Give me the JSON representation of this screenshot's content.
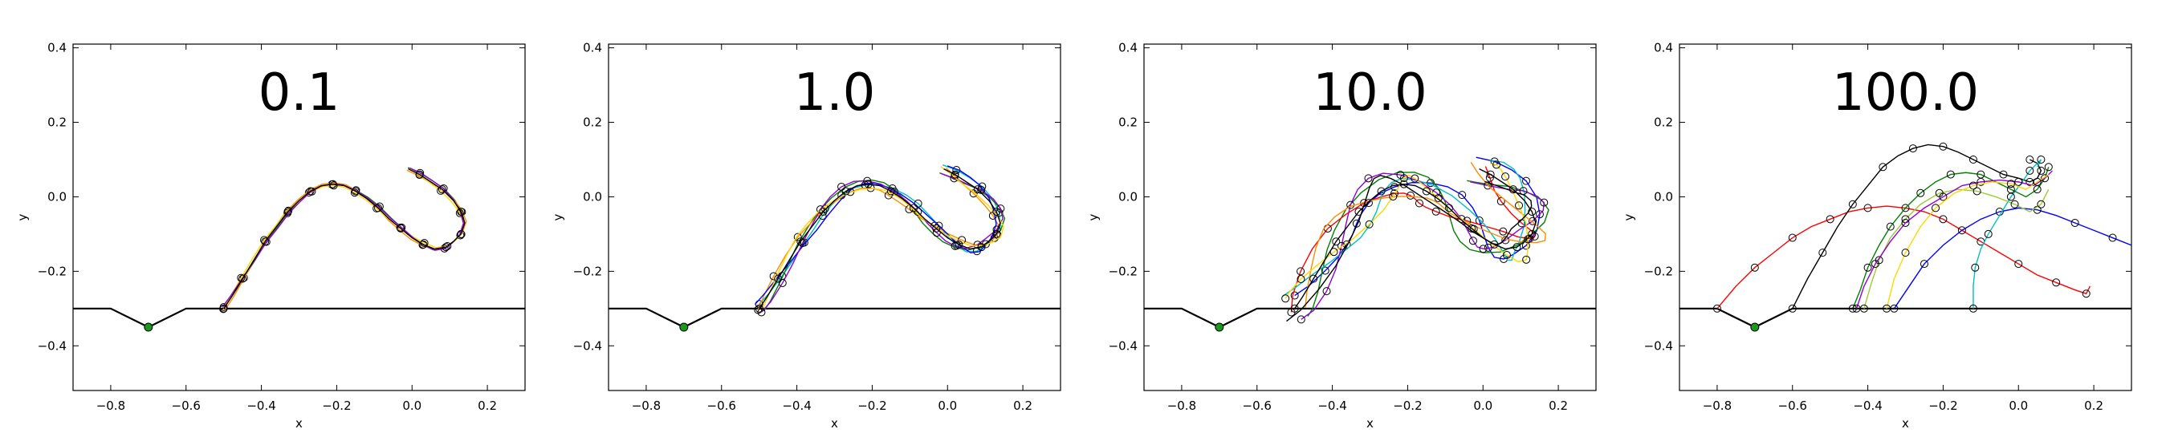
{
  "figure": {
    "type": "multi-panel-trajectory-plots"
  },
  "chart_data": [
    {
      "type": "line",
      "title": "0.1",
      "xlabel": "x",
      "ylabel": "y",
      "xlim": [
        -0.9,
        0.3
      ],
      "ylim": [
        -0.52,
        0.41
      ],
      "xticks": [
        "−0.8",
        "−0.6",
        "−0.4",
        "−0.2",
        "0.0",
        "0.2"
      ],
      "yticks": [
        "−0.4",
        "−0.2",
        "0.0",
        "0.2",
        "0.4"
      ],
      "grid": false,
      "ground": {
        "x": [
          -0.9,
          -0.8,
          -0.7,
          -0.6,
          0.3
        ],
        "y": [
          -0.3,
          -0.3,
          -0.35,
          -0.3,
          -0.3
        ]
      },
      "goal": {
        "x": -0.7,
        "y": -0.35,
        "color": "#1a9a1a"
      },
      "spread": 0.004,
      "series": [
        {
          "color": "#000000",
          "x": [
            -0.5,
            -0.48,
            -0.45,
            -0.42,
            -0.39,
            -0.36,
            -0.33,
            -0.3,
            -0.27,
            -0.24,
            -0.21,
            -0.18,
            -0.15,
            -0.12,
            -0.09,
            -0.06,
            -0.03,
            0.0,
            0.03,
            0.06,
            0.09,
            0.11,
            0.13,
            0.14,
            0.13,
            0.11,
            0.08,
            0.05,
            0.02,
            -0.01
          ],
          "y": [
            -0.3,
            -0.27,
            -0.22,
            -0.17,
            -0.12,
            -0.08,
            -0.04,
            -0.01,
            0.015,
            0.03,
            0.034,
            0.03,
            0.015,
            -0.005,
            -0.03,
            -0.06,
            -0.085,
            -0.11,
            -0.128,
            -0.14,
            -0.135,
            -0.12,
            -0.1,
            -0.07,
            -0.04,
            -0.01,
            0.02,
            0.04,
            0.06,
            0.075
          ]
        }
      ],
      "colors": [
        "#008000",
        "#ff8c00",
        "#ffd700",
        "#9400d3"
      ]
    },
    {
      "type": "line",
      "title": "1.0",
      "xlabel": "x",
      "ylabel": "y",
      "xlim": [
        -0.9,
        0.3
      ],
      "ylim": [
        -0.52,
        0.41
      ],
      "xticks": [
        "−0.8",
        "−0.6",
        "−0.4",
        "−0.2",
        "0.0",
        "0.2"
      ],
      "yticks": [
        "−0.4",
        "−0.2",
        "0.0",
        "0.2",
        "0.4"
      ],
      "grid": false,
      "ground": {
        "x": [
          -0.9,
          -0.8,
          -0.7,
          -0.6,
          0.3
        ],
        "y": [
          -0.3,
          -0.3,
          -0.35,
          -0.3,
          -0.3
        ]
      },
      "goal": {
        "x": -0.7,
        "y": -0.35,
        "color": "#1a9a1a"
      },
      "spread": 0.012,
      "series": [
        {
          "color": "#000000",
          "x": [
            -0.5,
            -0.48,
            -0.45,
            -0.42,
            -0.39,
            -0.36,
            -0.33,
            -0.3,
            -0.27,
            -0.24,
            -0.21,
            -0.18,
            -0.15,
            -0.12,
            -0.09,
            -0.06,
            -0.03,
            0.0,
            0.03,
            0.06,
            0.09,
            0.11,
            0.13,
            0.14,
            0.13,
            0.11,
            0.08,
            0.05,
            0.02,
            -0.01
          ],
          "y": [
            -0.3,
            -0.27,
            -0.22,
            -0.17,
            -0.12,
            -0.08,
            -0.04,
            -0.01,
            0.015,
            0.03,
            0.034,
            0.03,
            0.015,
            -0.005,
            -0.03,
            -0.06,
            -0.085,
            -0.11,
            -0.128,
            -0.14,
            -0.135,
            -0.12,
            -0.1,
            -0.07,
            -0.04,
            -0.01,
            0.02,
            0.04,
            0.06,
            0.075
          ]
        }
      ],
      "colors": [
        "#00bfbf",
        "#008000",
        "#ff8c00",
        "#0000ff",
        "#9400d3",
        "#ffd700"
      ]
    },
    {
      "type": "line",
      "title": "10.0",
      "xlabel": "x",
      "ylabel": "y",
      "xlim": [
        -0.9,
        0.3
      ],
      "ylim": [
        -0.52,
        0.41
      ],
      "xticks": [
        "−0.8",
        "−0.6",
        "−0.4",
        "−0.2",
        "0.0",
        "0.2"
      ],
      "yticks": [
        "−0.4",
        "−0.2",
        "0.0",
        "0.2",
        "0.4"
      ],
      "grid": false,
      "ground": {
        "x": [
          -0.9,
          -0.8,
          -0.7,
          -0.6,
          0.3
        ],
        "y": [
          -0.3,
          -0.3,
          -0.35,
          -0.3,
          -0.3
        ]
      },
      "goal": {
        "x": -0.7,
        "y": -0.35,
        "color": "#1a9a1a"
      },
      "spread": 0.035,
      "series": [
        {
          "color": "#000000",
          "x": [
            -0.5,
            -0.48,
            -0.45,
            -0.42,
            -0.39,
            -0.36,
            -0.33,
            -0.3,
            -0.27,
            -0.24,
            -0.21,
            -0.18,
            -0.15,
            -0.12,
            -0.09,
            -0.06,
            -0.03,
            0.0,
            0.03,
            0.06,
            0.09,
            0.11,
            0.13,
            0.14,
            0.13,
            0.11,
            0.08,
            0.05,
            0.02,
            -0.01
          ],
          "y": [
            -0.3,
            -0.27,
            -0.22,
            -0.17,
            -0.12,
            -0.08,
            -0.04,
            -0.01,
            0.015,
            0.03,
            0.034,
            0.03,
            0.015,
            -0.005,
            -0.03,
            -0.06,
            -0.085,
            -0.11,
            -0.128,
            -0.14,
            -0.135,
            -0.12,
            -0.1,
            -0.07,
            -0.04,
            -0.01,
            0.02,
            0.04,
            0.06,
            0.075
          ]
        }
      ],
      "colors": [
        "#0000ff",
        "#008000",
        "#ff0000",
        "#00bfbf",
        "#9400d3",
        "#ff8c00",
        "#ffd700",
        "#000000"
      ]
    },
    {
      "type": "line",
      "title": "100.0",
      "xlabel": "x",
      "ylabel": "y",
      "xlim": [
        -0.9,
        0.3
      ],
      "ylim": [
        -0.52,
        0.41
      ],
      "xticks": [
        "−0.8",
        "−0.6",
        "−0.4",
        "−0.2",
        "0.0",
        "0.2"
      ],
      "yticks": [
        "−0.4",
        "−0.2",
        "0.0",
        "0.2",
        "0.4"
      ],
      "grid": false,
      "ground": {
        "x": [
          -0.9,
          -0.8,
          -0.7,
          -0.6,
          0.3
        ],
        "y": [
          -0.3,
          -0.3,
          -0.35,
          -0.3,
          -0.3
        ]
      },
      "goal": {
        "x": -0.7,
        "y": -0.35,
        "color": "#1a9a1a"
      },
      "spread": 0.0,
      "series": [
        {
          "color": "#ff0000",
          "x": [
            -0.8,
            -0.75,
            -0.7,
            -0.65,
            -0.6,
            -0.55,
            -0.5,
            -0.45,
            -0.4,
            -0.35,
            -0.3,
            -0.25,
            -0.2,
            -0.15,
            -0.1,
            -0.05,
            0.0,
            0.05,
            0.1,
            0.15,
            0.18,
            0.19
          ],
          "y": [
            -0.3,
            -0.24,
            -0.19,
            -0.15,
            -0.11,
            -0.08,
            -0.06,
            -0.04,
            -0.03,
            -0.025,
            -0.03,
            -0.04,
            -0.06,
            -0.09,
            -0.12,
            -0.15,
            -0.18,
            -0.21,
            -0.23,
            -0.25,
            -0.26,
            -0.24
          ]
        },
        {
          "color": "#000000",
          "x": [
            -0.6,
            -0.56,
            -0.52,
            -0.48,
            -0.44,
            -0.4,
            -0.36,
            -0.32,
            -0.28,
            -0.24,
            -0.2,
            -0.16,
            -0.12,
            -0.08,
            -0.04,
            0.0,
            0.03,
            0.05,
            0.06,
            0.05,
            0.03
          ],
          "y": [
            -0.3,
            -0.22,
            -0.15,
            -0.08,
            -0.02,
            0.03,
            0.08,
            0.11,
            0.13,
            0.14,
            0.135,
            0.12,
            0.1,
            0.08,
            0.06,
            0.05,
            0.04,
            0.05,
            0.07,
            0.09,
            0.1
          ]
        },
        {
          "color": "#0000ff",
          "x": [
            -0.33,
            -0.29,
            -0.25,
            -0.2,
            -0.15,
            -0.1,
            -0.05,
            0.0,
            0.05,
            0.1,
            0.15,
            0.2,
            0.25,
            0.3
          ],
          "y": [
            -0.3,
            -0.24,
            -0.18,
            -0.13,
            -0.09,
            -0.06,
            -0.04,
            -0.03,
            -0.035,
            -0.05,
            -0.07,
            -0.09,
            -0.11,
            -0.13
          ]
        },
        {
          "color": "#00bfbf",
          "x": [
            -0.12,
            -0.12,
            -0.115,
            -0.1,
            -0.08,
            -0.05,
            -0.02,
            0.01,
            0.03,
            0.05,
            0.06,
            0.05
          ],
          "y": [
            -0.3,
            -0.24,
            -0.19,
            -0.14,
            -0.1,
            -0.05,
            0.0,
            0.04,
            0.07,
            0.09,
            0.1,
            0.08
          ]
        },
        {
          "color": "#008000",
          "x": [
            -0.44,
            -0.42,
            -0.4,
            -0.37,
            -0.34,
            -0.3,
            -0.26,
            -0.22,
            -0.18,
            -0.14,
            -0.1,
            -0.06,
            -0.02,
            0.02,
            0.05,
            0.07,
            0.08
          ],
          "y": [
            -0.3,
            -0.25,
            -0.19,
            -0.13,
            -0.08,
            -0.03,
            0.01,
            0.04,
            0.06,
            0.065,
            0.06,
            0.04,
            0.02,
            0.0,
            0.02,
            0.05,
            0.08
          ]
        },
        {
          "color": "#9acd32",
          "x": [
            -0.41,
            -0.39,
            -0.37,
            -0.34,
            -0.3,
            -0.26,
            -0.21,
            -0.16,
            -0.11,
            -0.06,
            -0.01,
            0.03,
            0.06,
            0.08
          ],
          "y": [
            -0.3,
            -0.23,
            -0.17,
            -0.11,
            -0.06,
            -0.02,
            0.01,
            0.02,
            0.015,
            0.0,
            -0.02,
            -0.04,
            -0.02,
            0.02
          ]
        },
        {
          "color": "#9400d3",
          "x": [
            -0.43,
            -0.41,
            -0.38,
            -0.34,
            -0.3,
            -0.25,
            -0.2,
            -0.15,
            -0.1,
            -0.05,
            0.0,
            0.04,
            0.07,
            0.09
          ],
          "y": [
            -0.3,
            -0.24,
            -0.18,
            -0.12,
            -0.07,
            -0.03,
            0.0,
            0.03,
            0.04,
            0.045,
            0.04,
            0.03,
            0.05,
            0.07
          ]
        },
        {
          "color": "#ffd700",
          "x": [
            -0.35,
            -0.33,
            -0.3,
            -0.26,
            -0.22,
            -0.17,
            -0.12,
            -0.07,
            -0.02,
            0.02,
            0.05,
            0.08
          ],
          "y": [
            -0.3,
            -0.22,
            -0.15,
            -0.08,
            -0.03,
            0.01,
            0.03,
            0.04,
            0.035,
            0.02,
            0.04,
            0.06
          ]
        }
      ],
      "colors": []
    }
  ]
}
